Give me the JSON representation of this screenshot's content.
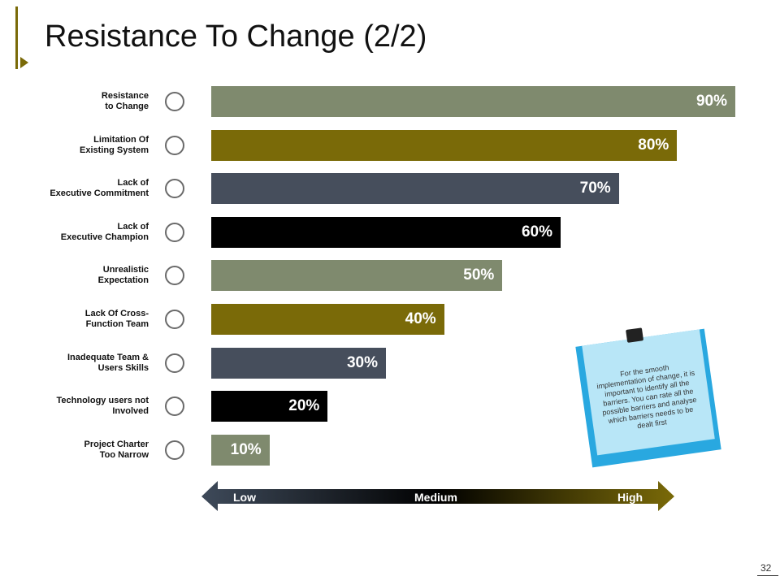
{
  "chart_data": {
    "type": "bar",
    "orientation": "horizontal",
    "title": "Resistance To Change (2/2)",
    "categories": [
      "Resistance\nto Change",
      "Limitation Of\nExisting System",
      "Lack of\nExecutive Commitment",
      "Lack of\nExecutive Champion",
      "Unrealistic\nExpectation",
      "Lack Of Cross-\nFunction Team",
      "Inadequate Team &\nUsers Skills",
      "Technology users not\nInvolved",
      "Project Charter\nToo Narrow"
    ],
    "values": [
      90,
      80,
      70,
      60,
      50,
      40,
      30,
      20,
      10
    ],
    "value_labels": [
      "90%",
      "80%",
      "70%",
      "60%",
      "50%",
      "40%",
      "30%",
      "20%",
      "10%"
    ],
    "colors": [
      "#7f8a6e",
      "#7a6a08",
      "#464e5c",
      "#000000",
      "#7f8a6e",
      "#7a6a08",
      "#464e5c",
      "#000000",
      "#7f8a6e"
    ]
  },
  "scale": {
    "low": "Low",
    "medium": "Medium",
    "high": "High"
  },
  "note": "For the smooth implementation of change, it is important to identify all the barriers. You can rate all the possible barriers and analyse which barriers needs to be dealt first",
  "page_number": "32"
}
